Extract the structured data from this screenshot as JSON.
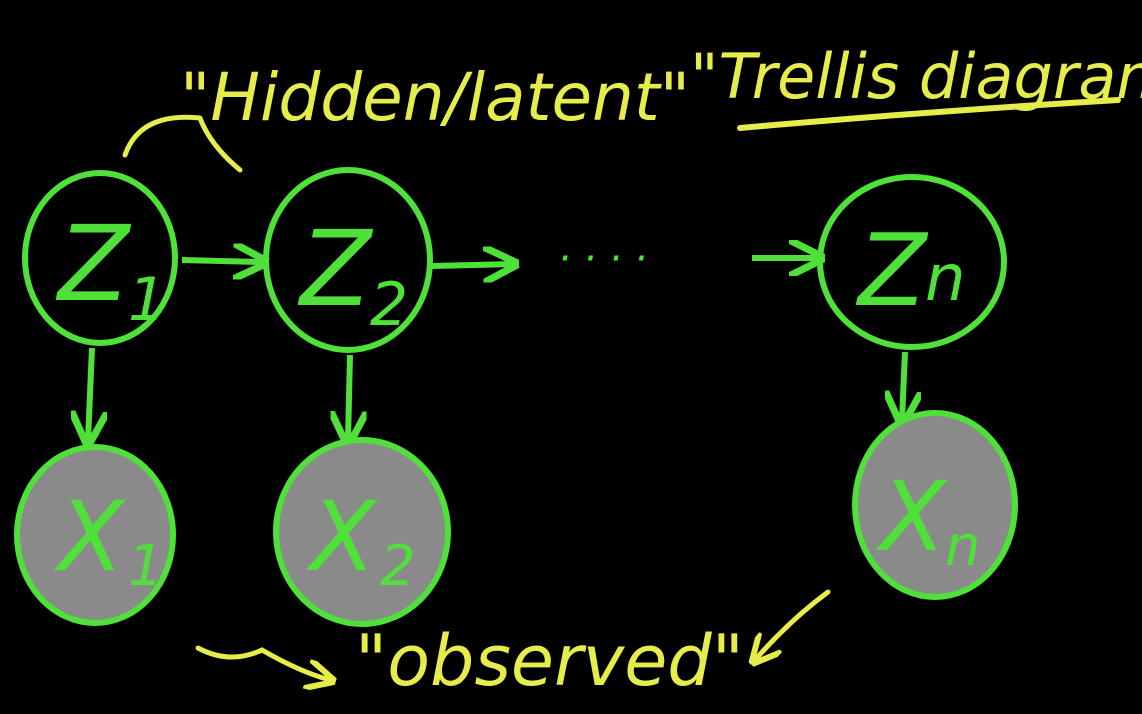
{
  "title": {
    "hidden_latent": "\"Hidden/latent\"",
    "trellis": "\"Trellis diagram\""
  },
  "annotation": {
    "observed": "\"observed\""
  },
  "colors": {
    "background": "#000000",
    "node_stroke": "#4fe03a",
    "annotation": "#e6ec4a",
    "observed_fill": "#8a8a8a"
  },
  "hidden_nodes": [
    {
      "label": "Z",
      "sub": "1"
    },
    {
      "label": "Z",
      "sub": "2"
    },
    {
      "label": "Z",
      "sub": "n"
    }
  ],
  "observed_nodes": [
    {
      "label": "X",
      "sub": "1"
    },
    {
      "label": "X",
      "sub": "2"
    },
    {
      "label": "X",
      "sub": "n"
    }
  ],
  "ellipsis": "· · · ·"
}
